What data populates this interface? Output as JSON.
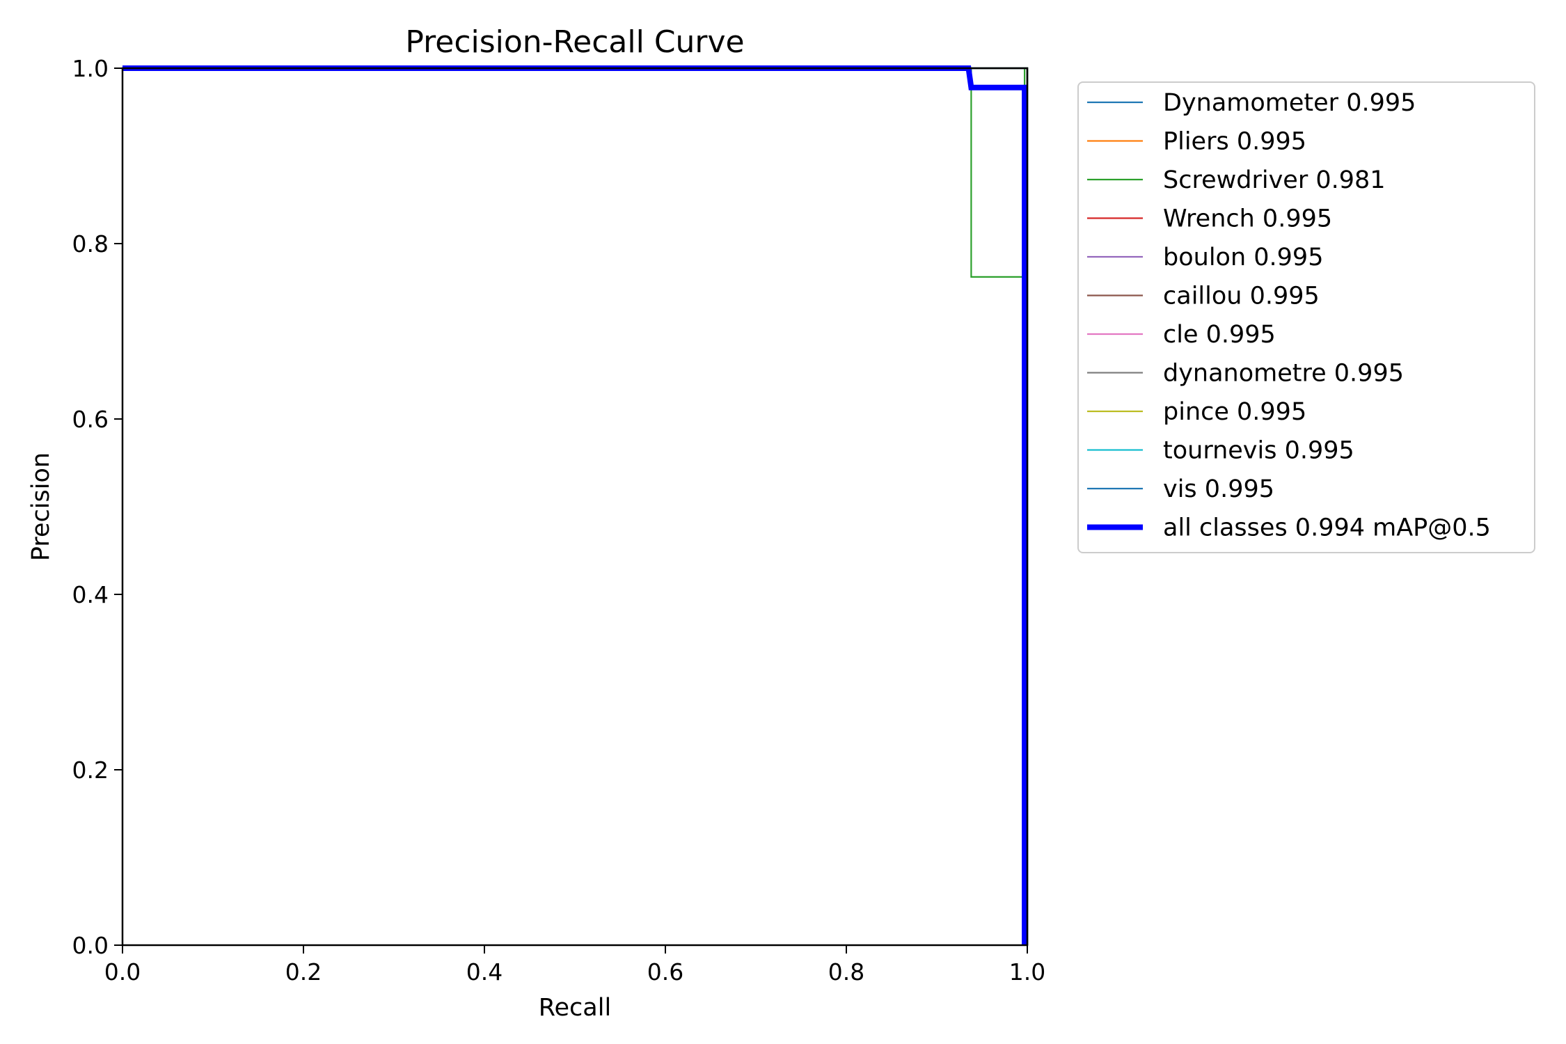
{
  "chart_data": {
    "type": "line",
    "title": "Precision-Recall Curve",
    "xlabel": "Recall",
    "ylabel": "Precision",
    "xlim": [
      0,
      1
    ],
    "ylim": [
      0,
      1
    ],
    "xticks": [
      "0.0",
      "0.2",
      "0.4",
      "0.6",
      "0.8",
      "1.0"
    ],
    "yticks": [
      "0.0",
      "0.2",
      "0.4",
      "0.6",
      "0.8",
      "1.0"
    ],
    "grid": false,
    "legend_placement": "outside-right-top",
    "series": [
      {
        "name": "Dynamometer 0.995",
        "color": "#1f77b4",
        "x": [
          0,
          1,
          1
        ],
        "y": [
          1,
          1,
          0
        ]
      },
      {
        "name": "Pliers 0.995",
        "color": "#ff7f0e",
        "x": [
          0,
          1,
          1
        ],
        "y": [
          1,
          1,
          0
        ]
      },
      {
        "name": "Screwdriver 0.981",
        "color": "#2ca02c",
        "x": [
          0,
          0.938,
          0.938,
          0.997,
          0.997,
          1,
          1
        ],
        "y": [
          1,
          1,
          0.762,
          0.762,
          1,
          1,
          0
        ]
      },
      {
        "name": "Wrench 0.995",
        "color": "#d62728",
        "x": [
          0,
          1,
          1
        ],
        "y": [
          1,
          1,
          0
        ]
      },
      {
        "name": "boulon 0.995",
        "color": "#9467bd",
        "x": [
          0,
          1,
          1
        ],
        "y": [
          1,
          1,
          0
        ]
      },
      {
        "name": "caillou 0.995",
        "color": "#8c564b",
        "x": [
          0,
          1,
          1
        ],
        "y": [
          1,
          1,
          0
        ]
      },
      {
        "name": "cle 0.995",
        "color": "#e377c2",
        "x": [
          0,
          1,
          1
        ],
        "y": [
          1,
          1,
          0
        ]
      },
      {
        "name": "dynanometre 0.995",
        "color": "#7f7f7f",
        "x": [
          0,
          1,
          1
        ],
        "y": [
          1,
          1,
          0
        ]
      },
      {
        "name": "pince 0.995",
        "color": "#bcbd22",
        "x": [
          0,
          1,
          1
        ],
        "y": [
          1,
          1,
          0
        ]
      },
      {
        "name": "tournevis 0.995",
        "color": "#17becf",
        "x": [
          0,
          1,
          1
        ],
        "y": [
          1,
          1,
          0
        ]
      },
      {
        "name": "vis 0.995",
        "color": "#1f77b4",
        "x": [
          0,
          1,
          1
        ],
        "y": [
          1,
          1,
          0
        ]
      },
      {
        "name": "all classes 0.994 mAP@0.5",
        "color": "#0000ff",
        "bold": true,
        "x": [
          0,
          0.935,
          0.938,
          0.997,
          0.997
        ],
        "y": [
          1,
          1,
          0.978,
          0.978,
          0
        ]
      }
    ]
  }
}
